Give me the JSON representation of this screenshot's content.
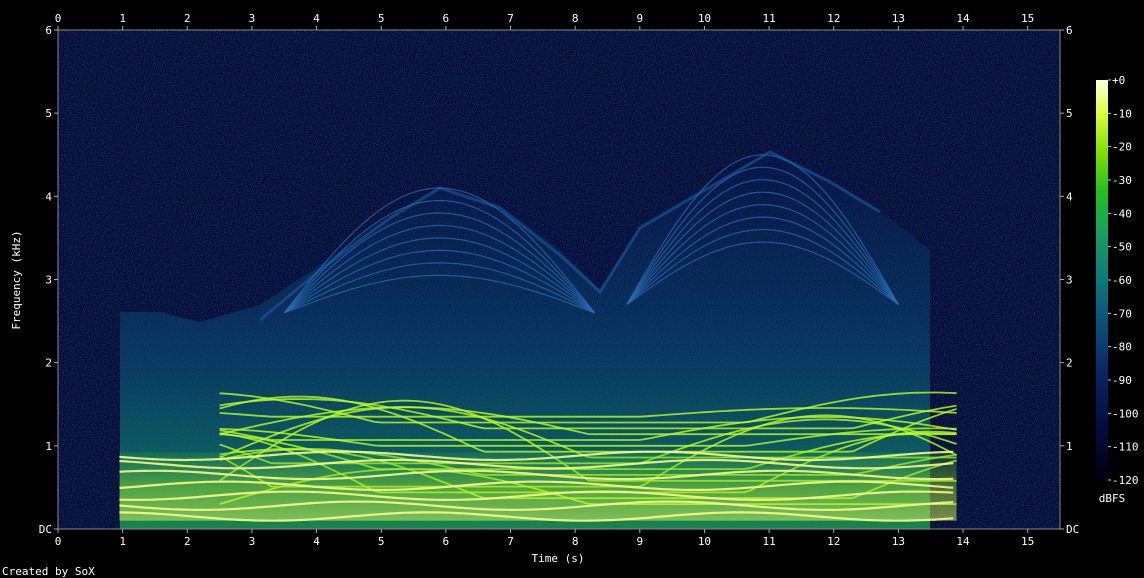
{
  "chart_data": {
    "type": "heatmap",
    "xlabel": "Time (s)",
    "ylabel": "Frequency (kHz)",
    "x_ticks": [
      "0",
      "1",
      "2",
      "3",
      "4",
      "5",
      "6",
      "7",
      "8",
      "9",
      "10",
      "11",
      "12",
      "13",
      "14",
      "15"
    ],
    "y_ticks": [
      "DC",
      "1",
      "2",
      "3",
      "4",
      "5",
      "6"
    ],
    "xlim": [
      0,
      15.5
    ],
    "ylim": [
      0,
      6
    ],
    "colorbar": {
      "label": "dBFS",
      "ticks": [
        "+0",
        "-10",
        "-20",
        "-30",
        "-40",
        "-50",
        "-60",
        "-70",
        "-80",
        "-90",
        "-100",
        "-110",
        "-120"
      ],
      "range": [
        -120,
        0
      ]
    },
    "credit": "Created by SoX",
    "signal_time_range": [
      0.95,
      13.9
    ],
    "tonal_bands_khz": [
      0.15,
      0.28,
      0.4,
      0.52,
      0.65,
      0.78,
      0.88
    ],
    "tonal_band_peak_khz": 1.7,
    "noise_envelope_peak_khz": 4.6
  }
}
